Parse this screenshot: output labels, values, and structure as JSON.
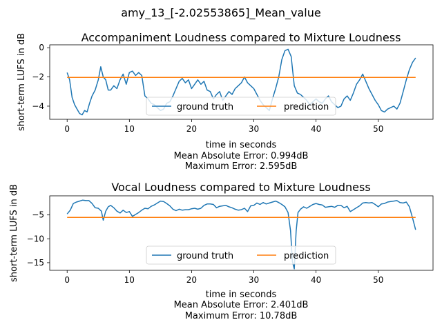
{
  "figure_title": "amy_13_[-2.02553865]_Mean_value",
  "colors": {
    "ground_truth": "#1f77b4",
    "prediction": "#ff7f0e",
    "axes": "#000000",
    "background": "#ffffff"
  },
  "chart_data": [
    {
      "type": "line",
      "title": "Accompaniment Loudness compared to Mixture Loudness",
      "xlabel": "time in seconds",
      "ylabel": "short-term LUFS in dB",
      "xlim": [
        -2.8,
        58.8
      ],
      "ylim": [
        -4.9,
        0.2
      ],
      "xticks": [
        0,
        10,
        20,
        30,
        40,
        50
      ],
      "yticks": [
        0,
        -2,
        -4
      ],
      "legend": {
        "placement": "lower-center",
        "columns": 2
      },
      "grid": false,
      "metrics": [
        "Mean Absolute Error: 0.994dB",
        "Maximum Error: 2.595dB"
      ],
      "series": [
        {
          "name": "ground truth",
          "color": "#1f77b4",
          "x": [
            0,
            0.4,
            0.8,
            1.2,
            1.6,
            2.0,
            2.4,
            2.8,
            3.2,
            3.6,
            4.0,
            4.5,
            5.0,
            5.4,
            5.8,
            6.2,
            6.6,
            7.0,
            7.5,
            8.0,
            8.5,
            9.0,
            9.5,
            10.0,
            10.5,
            11.0,
            11.5,
            12.0,
            12.5,
            13.0,
            13.5,
            14.0,
            14.5,
            15.0,
            15.5,
            16.0,
            16.5,
            17.0,
            17.5,
            18.0,
            18.5,
            19.0,
            19.5,
            20.0,
            20.5,
            21.0,
            21.5,
            22.0,
            22.5,
            23.0,
            23.5,
            24.0,
            24.5,
            25.0,
            25.5,
            26.0,
            26.5,
            27.0,
            27.5,
            28.0,
            28.5,
            29.0,
            29.5,
            30.0,
            30.5,
            31.0,
            31.5,
            32.0,
            32.5,
            33.0,
            33.5,
            34.0,
            34.5,
            35.0,
            35.5,
            36.0,
            36.5,
            37.0,
            37.5,
            38.0,
            38.5,
            39.0,
            39.5,
            40.0,
            40.5,
            41.0,
            41.5,
            42.0,
            42.5,
            43.0,
            43.5,
            44.0,
            44.5,
            45.0,
            45.5,
            46.0,
            46.5,
            47.0,
            47.5,
            48.0,
            48.5,
            49.0,
            49.5,
            50.0,
            50.5,
            51.0,
            51.5,
            52.0,
            52.5,
            53.0,
            53.5,
            54.0,
            54.5,
            55.0,
            55.5,
            56.0
          ],
          "y": [
            -1.7,
            -2.2,
            -3.4,
            -3.9,
            -4.2,
            -4.5,
            -4.6,
            -4.3,
            -4.4,
            -3.8,
            -3.3,
            -2.9,
            -2.2,
            -1.3,
            -2.0,
            -2.2,
            -2.9,
            -2.9,
            -2.6,
            -2.8,
            -2.2,
            -1.8,
            -2.5,
            -1.7,
            -1.6,
            -1.9,
            -1.7,
            -1.9,
            -3.3,
            -3.5,
            -3.8,
            -3.9,
            -4.1,
            -4.3,
            -4.2,
            -3.8,
            -3.7,
            -3.3,
            -2.8,
            -2.3,
            -2.1,
            -2.4,
            -2.2,
            -2.8,
            -2.5,
            -2.2,
            -2.5,
            -2.3,
            -2.9,
            -3.0,
            -3.5,
            -3.2,
            -3.0,
            -3.6,
            -3.3,
            -3.0,
            -3.2,
            -2.8,
            -2.6,
            -2.4,
            -2.0,
            -2.4,
            -2.6,
            -2.8,
            -3.2,
            -3.6,
            -3.9,
            -4.1,
            -4.3,
            -3.5,
            -2.8,
            -2.0,
            -0.8,
            -0.2,
            -0.1,
            -0.6,
            -2.6,
            -3.1,
            -3.2,
            -3.4,
            -3.6,
            -3.9,
            -3.7,
            -3.5,
            -3.7,
            -3.8,
            -3.5,
            -3.3,
            -3.7,
            -3.9,
            -4.1,
            -4.0,
            -3.5,
            -3.3,
            -3.6,
            -3.1,
            -2.5,
            -2.2,
            -1.8,
            -2.3,
            -2.8,
            -3.2,
            -3.6,
            -3.9,
            -4.3,
            -4.4,
            -4.2,
            -4.1,
            -4.0,
            -4.2,
            -3.8,
            -3.0,
            -2.2,
            -1.5,
            -1.0,
            -0.7
          ]
        },
        {
          "name": "prediction",
          "color": "#ff7f0e",
          "x": [
            0,
            56
          ],
          "y": [
            -2.03,
            -2.03
          ]
        }
      ]
    },
    {
      "type": "line",
      "title": "Vocal Loudness compared to Mixture Loudness",
      "xlabel": "time in seconds",
      "ylabel": "short-term LUFS in dB",
      "xlim": [
        -2.8,
        58.8
      ],
      "ylim": [
        -16.6,
        -1.0
      ],
      "xticks": [
        0,
        10,
        20,
        30,
        40,
        50
      ],
      "yticks": [
        -5,
        -10,
        -15
      ],
      "legend": {
        "placement": "lower-center",
        "columns": 2
      },
      "grid": false,
      "metrics": [
        "Mean Absolute Error: 2.401dB",
        "Maximum Error: 10.78dB"
      ],
      "series": [
        {
          "name": "ground truth",
          "color": "#1f77b4",
          "x": [
            0,
            0.5,
            1.0,
            1.5,
            2.0,
            2.5,
            3.0,
            3.5,
            4.0,
            4.5,
            5.0,
            5.5,
            5.8,
            6.2,
            6.6,
            7.0,
            7.5,
            8.0,
            8.5,
            9.0,
            9.5,
            10.0,
            10.5,
            11.0,
            11.5,
            12.0,
            12.5,
            13.0,
            13.5,
            14.0,
            14.5,
            15.0,
            15.5,
            16.0,
            16.5,
            17.0,
            17.5,
            18.0,
            18.5,
            19.0,
            19.5,
            20.0,
            20.5,
            21.0,
            21.5,
            22.0,
            22.5,
            23.0,
            23.5,
            24.0,
            24.5,
            25.0,
            25.5,
            26.0,
            26.5,
            27.0,
            27.5,
            28.0,
            28.5,
            29.0,
            29.5,
            30.0,
            30.5,
            31.0,
            31.5,
            32.0,
            32.5,
            33.0,
            33.5,
            34.0,
            34.5,
            35.0,
            35.5,
            35.9,
            36.2,
            36.5,
            36.8,
            37.1,
            37.5,
            38.0,
            38.5,
            39.0,
            39.5,
            40.0,
            40.5,
            41.0,
            41.5,
            42.0,
            42.5,
            43.0,
            43.5,
            44.0,
            44.5,
            45.0,
            45.5,
            46.0,
            46.5,
            47.0,
            47.5,
            48.0,
            48.5,
            49.0,
            49.5,
            50.0,
            50.5,
            51.0,
            51.5,
            52.0,
            52.5,
            53.0,
            53.5,
            54.0,
            54.5,
            55.0,
            55.5,
            56.0
          ],
          "y": [
            -4.8,
            -4.0,
            -2.6,
            -2.3,
            -2.1,
            -1.9,
            -2.0,
            -2.0,
            -2.6,
            -3.5,
            -3.6,
            -4.2,
            -6.1,
            -4.2,
            -3.3,
            -3.0,
            -3.5,
            -4.2,
            -4.6,
            -4.0,
            -4.5,
            -4.3,
            -5.3,
            -4.9,
            -4.5,
            -4.0,
            -3.6,
            -3.7,
            -3.2,
            -2.9,
            -2.5,
            -2.1,
            -2.2,
            -2.6,
            -3.1,
            -3.8,
            -4.1,
            -3.8,
            -4.0,
            -3.9,
            -3.9,
            -3.7,
            -3.6,
            -3.8,
            -3.6,
            -3.0,
            -2.7,
            -2.7,
            -2.8,
            -3.5,
            -3.2,
            -3.1,
            -3.0,
            -3.3,
            -3.5,
            -3.8,
            -4.0,
            -3.9,
            -3.6,
            -4.3,
            -3.1,
            -3.0,
            -2.5,
            -2.8,
            -2.4,
            -2.7,
            -2.5,
            -2.3,
            -2.1,
            -2.4,
            -2.8,
            -3.3,
            -4.5,
            -8.3,
            -14.8,
            -16.3,
            -8.4,
            -4.5,
            -3.8,
            -3.3,
            -3.6,
            -3.2,
            -2.8,
            -2.6,
            -2.8,
            -2.9,
            -3.4,
            -3.3,
            -3.2,
            -3.4,
            -3.0,
            -3.0,
            -3.5,
            -3.2,
            -4.3,
            -3.9,
            -3.5,
            -3.1,
            -2.5,
            -2.4,
            -2.5,
            -2.4,
            -2.8,
            -3.3,
            -2.7,
            -2.6,
            -2.3,
            -2.2,
            -2.1,
            -2.0,
            -2.4,
            -2.5,
            -2.3,
            -3.3,
            -5.6,
            -8.1
          ]
        },
        {
          "name": "prediction",
          "color": "#ff7f0e",
          "x": [
            0,
            56
          ],
          "y": [
            -5.5,
            -5.5
          ]
        }
      ]
    }
  ]
}
